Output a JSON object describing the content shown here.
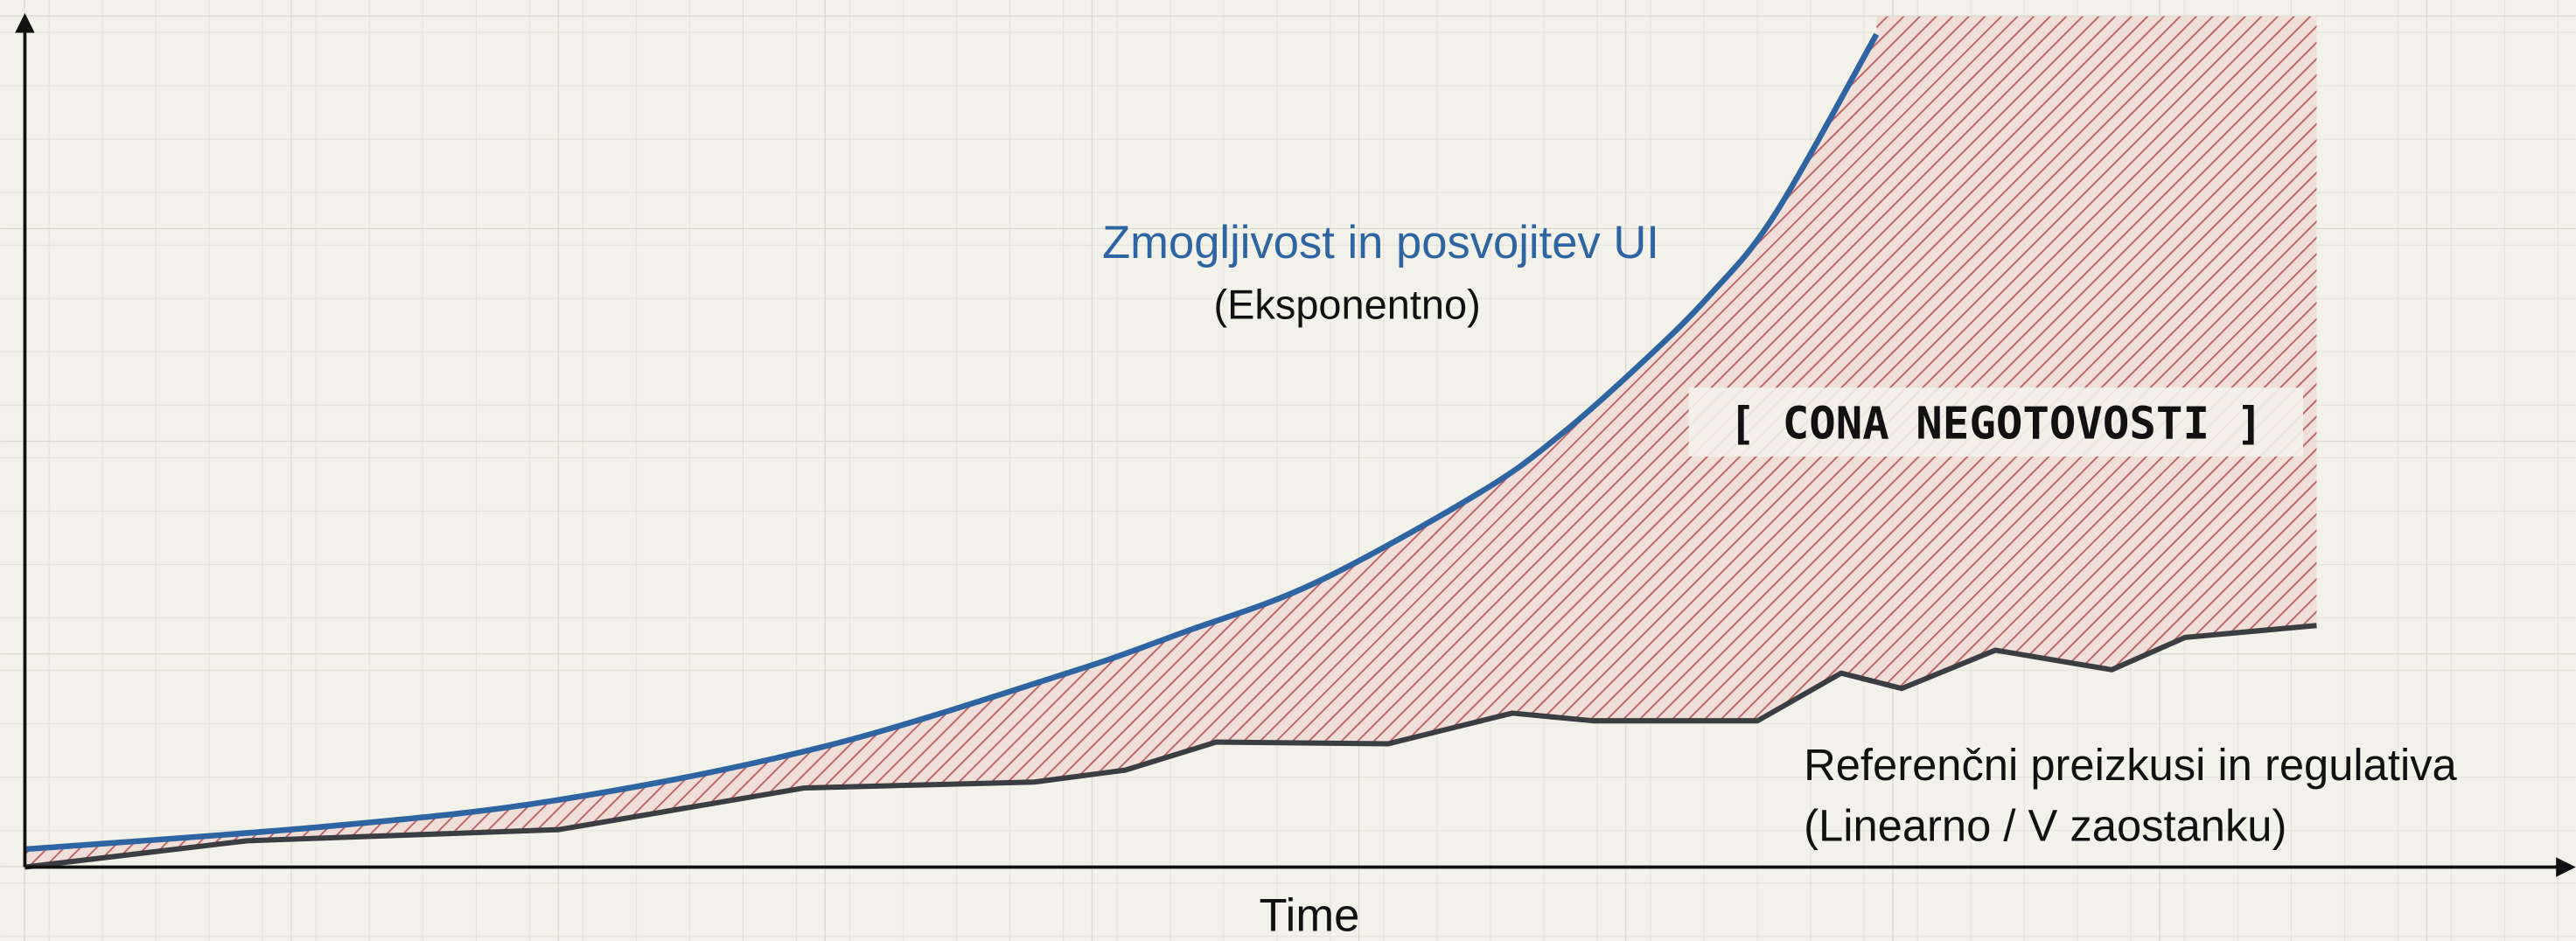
{
  "chart_data": {
    "type": "line",
    "x_label": "Time",
    "xlim": [
      0,
      100
    ],
    "ylim": [
      0,
      100
    ],
    "grid": true,
    "series": [
      {
        "name": "Zmogljivost in posvojitev UI",
        "color": "#2f64a3",
        "x": [
          0,
          12.0,
          21.1,
          31.5,
          41.2,
          45.8,
          51.0,
          57.5,
          60.7,
          64.0,
          66.6,
          69.2,
          73.2
        ],
        "values": [
          2.1,
          4.8,
          7.9,
          14.1,
          22.8,
          27.6,
          33.4,
          44.0,
          50.8,
          59.5,
          67.2,
          76.8,
          97.9
        ]
      },
      {
        "name": "Referenčni preizkusi in regulativa",
        "color": "#3a3d42",
        "x": [
          0,
          8.8,
          21.1,
          30.8,
          39.9,
          43.5,
          47.1,
          53.9,
          58.8,
          62.0,
          68.5,
          71.8,
          74.2,
          77.9,
          82.5,
          85.4,
          90.6
        ],
        "values": [
          0,
          3.1,
          4.4,
          9.3,
          10.0,
          11.4,
          14.7,
          14.5,
          18.1,
          17.2,
          17.2,
          22.8,
          21.0,
          25.5,
          23.2,
          27.0,
          28.4
        ]
      }
    ],
    "annotations": [
      "(Eksponentno)",
      "[ CONA NEGOTOVOSTI ]",
      "(Linearno / V zaostanku)"
    ]
  }
}
